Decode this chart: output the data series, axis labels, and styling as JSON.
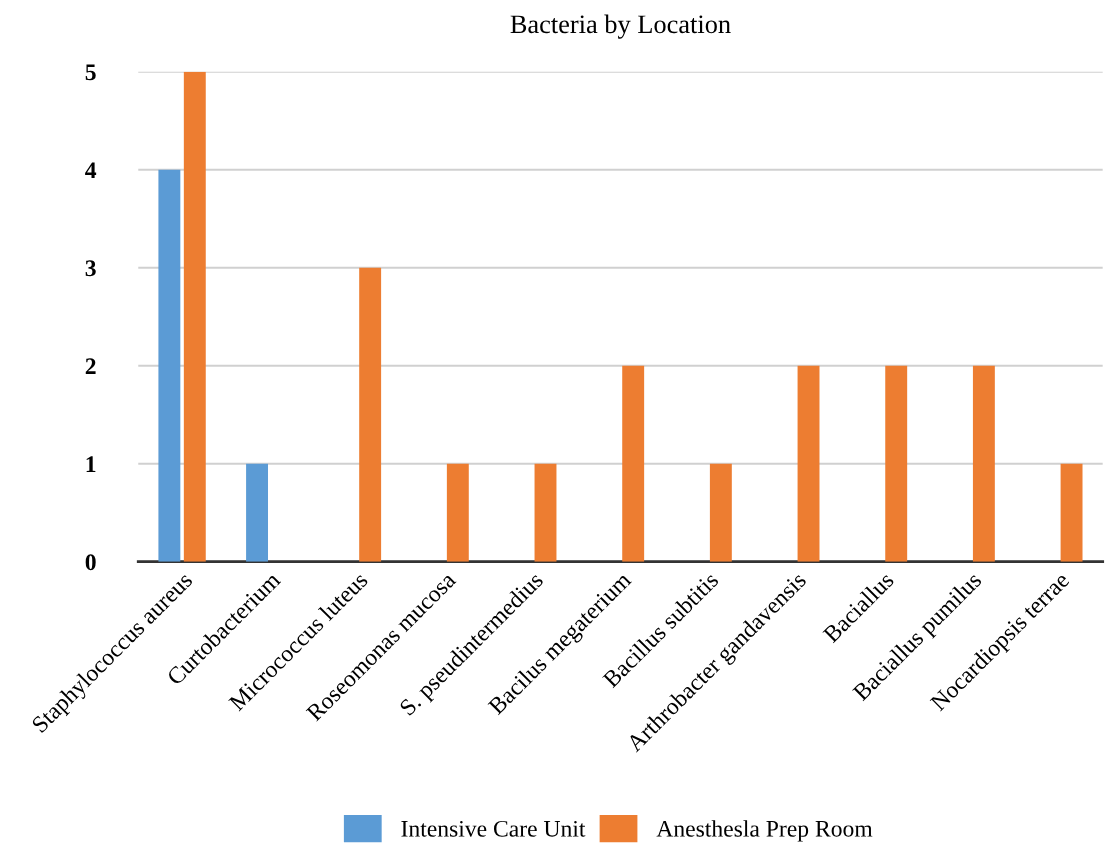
{
  "chart_data": {
    "type": "bar",
    "title": "Bacteria by Location",
    "categories": [
      "Staphylococcus aureus",
      "Curtobacterium",
      "Micrococcus luteus",
      "Roseomonas mucosa",
      "S. pseudintermedius",
      "Bacilus megaterium",
      "Bacillus subtitis",
      "Arthrobacter gandavensis",
      "Baciallus",
      "Baciallus pumilus",
      "Nocardiopsis terrae"
    ],
    "series": [
      {
        "name": "Intensive Care Unit",
        "color": "#5b9bd5",
        "values": [
          4,
          1,
          null,
          null,
          null,
          null,
          null,
          null,
          null,
          null,
          null
        ]
      },
      {
        "name": "Anesthesla Prep Room",
        "color": "#ed7d31",
        "values": [
          5,
          null,
          3,
          1,
          1,
          2,
          1,
          2,
          2,
          2,
          1
        ]
      }
    ],
    "ylim": [
      0,
      5
    ],
    "yticks": [
      0,
      1,
      2,
      3,
      4,
      5
    ],
    "grid": "y",
    "legend": "bottom"
  }
}
